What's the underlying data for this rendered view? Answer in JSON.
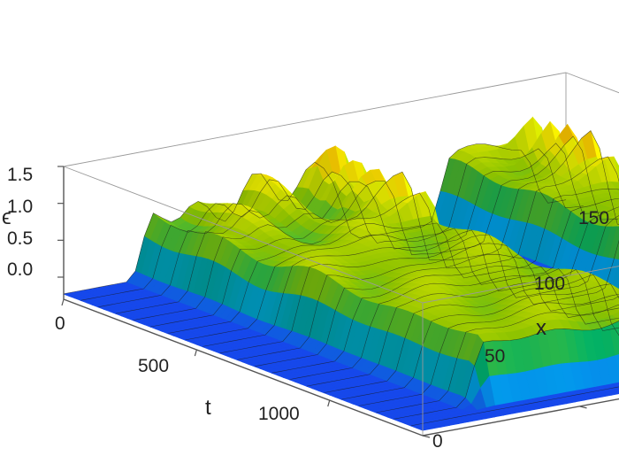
{
  "chart_data": {
    "type": "surface3d",
    "zlabel": "ϵ",
    "xlabel": "t",
    "ylabel": "x",
    "t_ticks": [
      "0",
      "500",
      "1000"
    ],
    "x_ticks": [
      "0",
      "50",
      "100",
      "150"
    ],
    "z_ticks": [
      "0.0",
      "0.5",
      "1.0",
      "1.5"
    ],
    "t_range": [
      0,
      1350
    ],
    "x_range": [
      0,
      160
    ],
    "z_range": [
      -0.3,
      1.5
    ],
    "colormap": [
      "#2030ff",
      "#00b0ff",
      "#00c070",
      "#9ad400",
      "#ffff00",
      "#ff9a00",
      "#e60000"
    ],
    "ridges": [
      {
        "x_start": 120,
        "x_end": 150,
        "level": 0.85
      },
      {
        "x_start": 25,
        "x_end": 90,
        "level": 0.85
      }
    ],
    "peaks_t": [
      40,
      110,
      180,
      260,
      340
    ],
    "peak_max": 1.45
  }
}
